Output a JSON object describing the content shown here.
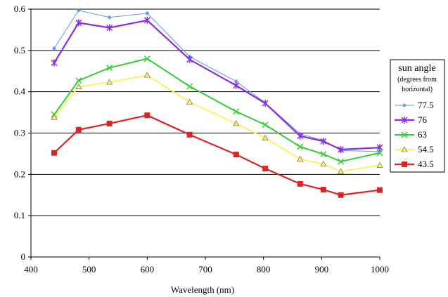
{
  "chart_data": {
    "type": "line",
    "xlabel": "Wavelength (nm)",
    "ylabel": "",
    "xlim": [
      400,
      1000
    ],
    "ylim": [
      0,
      0.6
    ],
    "x_ticks": [
      "400",
      "500",
      "600",
      "700",
      "800",
      "900",
      "1000"
    ],
    "y_ticks": [
      "0",
      "0.1",
      "0.2",
      "0.3",
      "0.4",
      "0.5",
      "0.6"
    ],
    "grid": "horizontal",
    "legend": {
      "title": "sun angle",
      "subtitle_lines": [
        "(degrees from",
        "horizontal)"
      ],
      "position": "right"
    },
    "x": [
      440,
      482,
      535,
      600,
      673,
      753,
      803,
      863,
      903,
      933,
      1000
    ],
    "series": [
      {
        "name": "77.5",
        "color": "#5B9BE6",
        "marker": "diamond",
        "values": [
          0.505,
          0.597,
          0.58,
          0.59,
          0.485,
          0.425,
          0.373,
          0.298,
          0.282,
          0.258,
          0.255
        ]
      },
      {
        "name": "76",
        "color": "#8B2BE2",
        "marker": "asterisk",
        "values": [
          0.47,
          0.567,
          0.555,
          0.573,
          0.478,
          0.415,
          0.372,
          0.293,
          0.28,
          0.26,
          0.265
        ]
      },
      {
        "name": "63",
        "color": "#33CC33",
        "marker": "x",
        "values": [
          0.345,
          0.427,
          0.458,
          0.48,
          0.413,
          0.352,
          0.32,
          0.267,
          0.249,
          0.231,
          0.252
        ]
      },
      {
        "name": "54.5",
        "color": "#FFF066",
        "marker": "triangle",
        "values": [
          0.338,
          0.412,
          0.423,
          0.44,
          0.375,
          0.323,
          0.288,
          0.237,
          0.225,
          0.207,
          0.222
        ]
      },
      {
        "name": "43.5",
        "color": "#DD2222",
        "marker": "square",
        "values": [
          0.252,
          0.308,
          0.323,
          0.343,
          0.296,
          0.248,
          0.214,
          0.177,
          0.163,
          0.15,
          0.162
        ]
      }
    ]
  }
}
